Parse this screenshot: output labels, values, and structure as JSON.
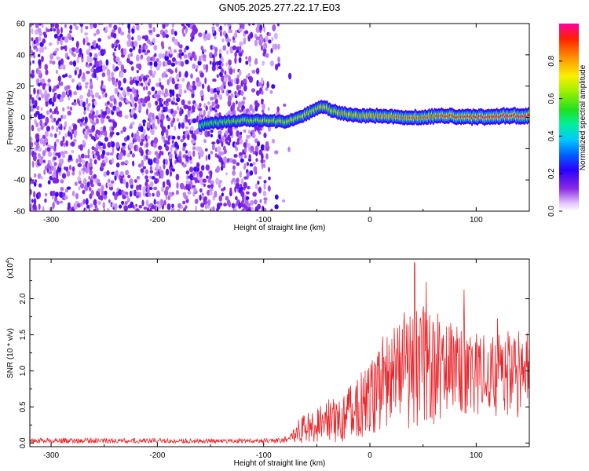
{
  "title": "GN05.2025.277.22.17.E03",
  "colors": {
    "snr_line": "#e8252a",
    "spectrogram_noise": "#7a1fe0",
    "spectrogram_peak": "#e01010",
    "axis": "#000000"
  },
  "chart_data": [
    {
      "type": "heatmap",
      "name": "spectrogram",
      "xlabel": "Height of straight line (km)",
      "ylabel": "Frequency (Hz)",
      "xlim": [
        -320,
        150
      ],
      "ylim": [
        -60,
        60
      ],
      "xticks": [
        -300,
        -200,
        -100,
        0,
        100
      ],
      "xtick_labels": [
        "-300",
        "-200",
        "-100",
        "0",
        "100"
      ],
      "yticks": [
        -60,
        -40,
        -20,
        0,
        20,
        40,
        60
      ],
      "ytick_labels": [
        "-60",
        "-40",
        "-20",
        "0",
        "20",
        "40",
        "60"
      ],
      "noise_region_x": [
        -320,
        -85
      ],
      "signal_band_x": [
        -160,
        150
      ],
      "signal_track": [
        {
          "x": -160,
          "y": -5
        },
        {
          "x": -140,
          "y": -3
        },
        {
          "x": -120,
          "y": -2
        },
        {
          "x": -100,
          "y": -2
        },
        {
          "x": -80,
          "y": -3
        },
        {
          "x": -60,
          "y": 2
        },
        {
          "x": -45,
          "y": 7
        },
        {
          "x": -30,
          "y": 3
        },
        {
          "x": -10,
          "y": 1
        },
        {
          "x": 10,
          "y": 1
        },
        {
          "x": 40,
          "y": 0
        },
        {
          "x": 70,
          "y": 1
        },
        {
          "x": 100,
          "y": 0
        },
        {
          "x": 130,
          "y": 1
        },
        {
          "x": 150,
          "y": 1
        }
      ],
      "colorbar": {
        "label": "Normalized spectral amplitude",
        "range": [
          0,
          1
        ],
        "ticks": [
          0.0,
          0.2,
          0.4,
          0.6,
          0.8
        ],
        "tick_labels": [
          "0.0",
          "0.2",
          "0.4",
          "0.6",
          "0.8"
        ]
      }
    },
    {
      "type": "line",
      "name": "snr",
      "xlabel": "Height of straight line (km)",
      "ylabel": "SNR (10 * v/v)",
      "scale_label": "(x10",
      "scale_exponent": "4",
      "xlim": [
        -320,
        150
      ],
      "ylim": [
        -0.05,
        2.55
      ],
      "xticks": [
        -300,
        -200,
        -100,
        0,
        100
      ],
      "xtick_labels": [
        "-300",
        "-200",
        "-100",
        "0",
        "100"
      ],
      "yticks": [
        0.0,
        0.5,
        1.0,
        1.5,
        2.0
      ],
      "ytick_labels": [
        "0.0",
        "0.5",
        "1.0",
        "1.5",
        "2.0"
      ],
      "envelope": [
        {
          "x": -320,
          "mean": 0.03,
          "amp": 0.04
        },
        {
          "x": -100,
          "mean": 0.03,
          "amp": 0.03
        },
        {
          "x": -75,
          "mean": 0.05,
          "amp": 0.05
        },
        {
          "x": -72,
          "mean": 0.15,
          "amp": 0.15
        },
        {
          "x": -50,
          "mean": 0.25,
          "amp": 0.25
        },
        {
          "x": -30,
          "mean": 0.35,
          "amp": 0.35
        },
        {
          "x": -10,
          "mean": 0.5,
          "amp": 0.45
        },
        {
          "x": 10,
          "mean": 0.75,
          "amp": 0.6
        },
        {
          "x": 30,
          "mean": 1.0,
          "amp": 0.8
        },
        {
          "x": 50,
          "mean": 1.05,
          "amp": 0.85
        },
        {
          "x": 80,
          "mean": 1.0,
          "amp": 0.7
        },
        {
          "x": 110,
          "mean": 0.95,
          "amp": 0.6
        },
        {
          "x": 150,
          "mean": 0.95,
          "amp": 0.6
        }
      ],
      "peak": {
        "x": 42,
        "y": 2.5
      }
    }
  ]
}
